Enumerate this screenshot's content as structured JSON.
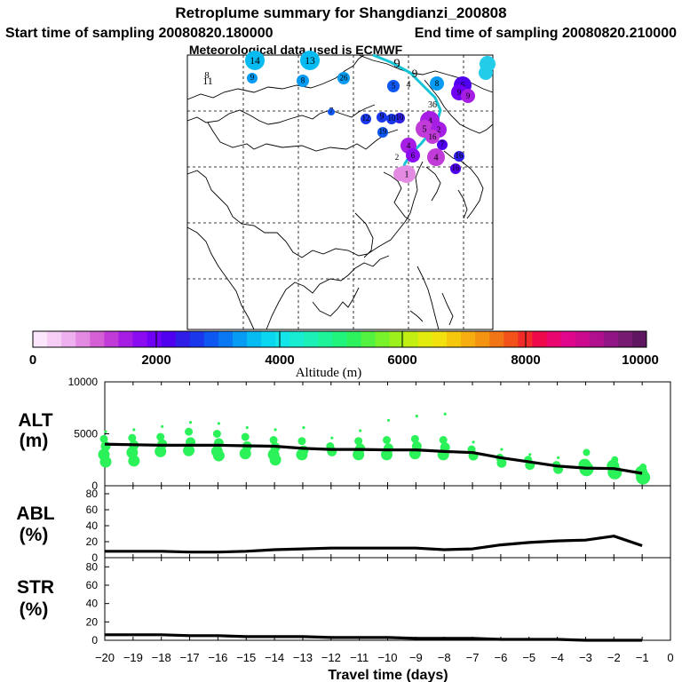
{
  "title": {
    "line1": "Retroplume summary for Shangdianzi_200808",
    "start": "Start time of sampling 20080820.180000",
    "end": "End time of sampling 20080820.210000",
    "met": "Meteorological data used is ECMWF"
  },
  "colorbar": {
    "label": "Altitude (m)",
    "ticks": [
      "0",
      "2000",
      "4000",
      "6000",
      "8000",
      "10000"
    ],
    "colors": [
      "#fbe6fb",
      "#f5cdf5",
      "#eeb0ee",
      "#e38be3",
      "#d55fd5",
      "#c13bd8",
      "#a61ee4",
      "#8c0cf2",
      "#6f00f5",
      "#4f00ee",
      "#2f1ee6",
      "#1a37ec",
      "#0e57f0",
      "#0a78f2",
      "#079bf3",
      "#06bbf2",
      "#0ad6ef",
      "#13e5e8",
      "#18edd2",
      "#1cf0b6",
      "#1ef39a",
      "#20f47c",
      "#2df25d",
      "#54f240",
      "#78f22a",
      "#9df01b",
      "#c2ee12",
      "#e2ea0e",
      "#f3e10d",
      "#f5c80e",
      "#f5ad10",
      "#f49212",
      "#f27515",
      "#f25219",
      "#f12a2a",
      "#ee0a4a",
      "#e9066e",
      "#e0078c",
      "#cc0a8e",
      "#b0108e",
      "#921585",
      "#761a72",
      "#5e1760"
    ]
  },
  "map": {
    "points": [
      {
        "label": "14",
        "alt": 3500
      },
      {
        "label": "13",
        "alt": 3700
      },
      {
        "label": "9",
        "alt": 3300
      },
      {
        "label": "8",
        "alt": 3300
      },
      {
        "label": "26",
        "alt": 3400
      },
      {
        "label": "5",
        "alt": 3000
      },
      {
        "label": "8",
        "alt": 3400
      },
      {
        "label": "6",
        "alt": 2200
      },
      {
        "label": "9",
        "alt": 1900
      },
      {
        "label": "9",
        "alt": 1500
      },
      {
        "label": "7",
        "alt": 2800
      },
      {
        "label": "12",
        "alt": 2600
      },
      {
        "label": "9",
        "alt": 2700
      },
      {
        "label": "10",
        "alt": 2500
      },
      {
        "label": "10",
        "alt": 2600
      },
      {
        "label": "19",
        "alt": 3000
      },
      {
        "label": "4",
        "alt": 1400
      },
      {
        "label": "5",
        "alt": 1300
      },
      {
        "label": "2",
        "alt": 1500
      },
      {
        "label": "16",
        "alt": 1300
      },
      {
        "label": "7",
        "alt": 2200
      },
      {
        "label": "4",
        "alt": 1600
      },
      {
        "label": "6",
        "alt": 1800
      },
      {
        "label": "8",
        "alt": 800
      },
      {
        "label": "4",
        "alt": 1300
      },
      {
        "label": "16",
        "alt": 2400
      },
      {
        "label": "16",
        "alt": 2300
      },
      {
        "label": "1",
        "alt": 700
      }
    ],
    "text_labels": [
      "11",
      "8",
      "9",
      "9",
      "4",
      "36",
      "2"
    ]
  },
  "chart_data": [
    {
      "type": "line",
      "panel": "ALT",
      "ylabel": "ALT\n(m)",
      "ylabel_lines": [
        "ALT",
        "(m)"
      ],
      "ylim": [
        0,
        10000
      ],
      "yticks": [
        "0",
        "5000",
        "10000"
      ],
      "x": [
        -20,
        -19,
        -18,
        -17,
        -16,
        -15,
        -14,
        -13,
        -12,
        -11,
        -10,
        -9,
        -8,
        -7,
        -6,
        -5,
        -4,
        -3,
        -2,
        -1
      ],
      "series": [
        {
          "name": "median",
          "values": [
            4000,
            3950,
            3900,
            3900,
            3900,
            3850,
            3800,
            3600,
            3500,
            3500,
            3450,
            3450,
            3300,
            3200,
            2700,
            2300,
            1900,
            1700,
            1650,
            1200
          ]
        }
      ],
      "scatter": [
        {
          "x": -20,
          "values": [
            5200,
            4500,
            3800,
            3000,
            2300
          ]
        },
        {
          "x": -19,
          "values": [
            5400,
            4600,
            3900,
            3200,
            2400
          ]
        },
        {
          "x": -18,
          "values": [
            5700,
            4700,
            4000,
            3300
          ]
        },
        {
          "x": -17,
          "values": [
            6100,
            5200,
            4200,
            3400
          ]
        },
        {
          "x": -16,
          "values": [
            6000,
            5000,
            4100,
            3300,
            2900
          ]
        },
        {
          "x": -15,
          "values": [
            5600,
            4700,
            3800,
            3100
          ]
        },
        {
          "x": -14,
          "values": [
            5400,
            4400,
            3700,
            3000,
            2500
          ]
        },
        {
          "x": -13,
          "values": [
            5600,
            4300,
            3400,
            3000
          ]
        },
        {
          "x": -12,
          "values": [
            4600,
            3800,
            3300
          ]
        },
        {
          "x": -11,
          "values": [
            5300,
            4300,
            3600,
            3000
          ]
        },
        {
          "x": -10,
          "values": [
            6300,
            4400,
            3600,
            3000
          ]
        },
        {
          "x": -9,
          "values": [
            6700,
            4500,
            3800,
            3100
          ]
        },
        {
          "x": -8,
          "values": [
            6900,
            4400,
            3700,
            3000
          ]
        },
        {
          "x": -7,
          "values": [
            4200,
            3500,
            2900
          ]
        },
        {
          "x": -6,
          "values": [
            3500,
            2700,
            2200
          ]
        },
        {
          "x": -5,
          "values": [
            3000,
            2500,
            2000
          ]
        },
        {
          "x": -4,
          "values": [
            2700,
            2000,
            1600
          ]
        },
        {
          "x": -3,
          "values": [
            3200,
            2000,
            1600
          ]
        },
        {
          "x": -2,
          "values": [
            2500,
            1900,
            1300
          ]
        },
        {
          "x": -1,
          "values": [
            1800,
            1300,
            800
          ]
        }
      ]
    },
    {
      "type": "line",
      "panel": "ABL",
      "ylabel_lines": [
        "ABL",
        "(%)"
      ],
      "ylim": [
        0,
        90
      ],
      "yticks": [
        "0",
        "20",
        "40",
        "60",
        "80"
      ],
      "x": [
        -20,
        -19,
        -18,
        -17,
        -16,
        -15,
        -14,
        -13,
        -12,
        -11,
        -10,
        -9,
        -8,
        -7,
        -6,
        -5,
        -4,
        -3,
        -2,
        -1
      ],
      "series": [
        {
          "name": "ABL",
          "values": [
            8,
            8,
            8,
            7,
            7,
            8,
            10,
            11,
            12,
            12,
            12,
            12,
            10,
            11,
            16,
            19,
            21,
            22,
            27,
            15
          ]
        }
      ]
    },
    {
      "type": "line",
      "panel": "STR",
      "ylabel_lines": [
        "STR",
        "(%)"
      ],
      "ylim": [
        0,
        90
      ],
      "yticks": [
        "0",
        "20",
        "40",
        "60",
        "80"
      ],
      "x": [
        -20,
        -19,
        -18,
        -17,
        -16,
        -15,
        -14,
        -13,
        -12,
        -11,
        -10,
        -9,
        -8,
        -7,
        -6,
        -5,
        -4,
        -3,
        -2,
        -1
      ],
      "series": [
        {
          "name": "STR",
          "values": [
            6,
            6,
            6,
            5,
            5,
            4,
            4,
            4,
            3,
            3,
            3,
            2,
            2,
            2,
            1,
            1,
            1,
            0,
            0,
            0
          ]
        }
      ],
      "xlabel": "Travel time (days)",
      "xticks": [
        "−20",
        "−19",
        "−18",
        "−17",
        "−16",
        "−15",
        "−14",
        "−13",
        "−12",
        "−11",
        "−10",
        "−9",
        "−8",
        "−7",
        "−6",
        "−5",
        "−4",
        "−3",
        "−2",
        "−1",
        "0"
      ]
    }
  ]
}
